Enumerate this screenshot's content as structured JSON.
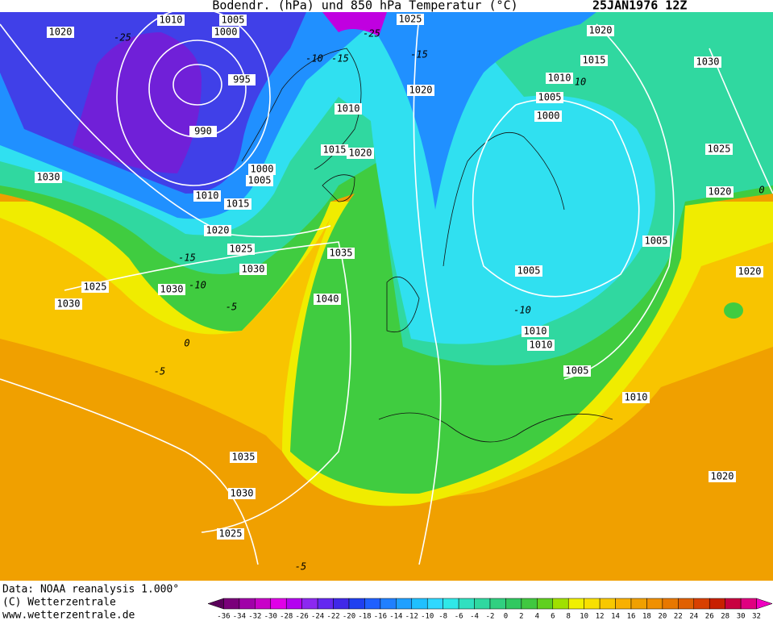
{
  "header": {
    "title": "Bodendr. (hPa) und 850 hPa Temperatur (°C)",
    "date": "25JAN1976 12Z"
  },
  "footer": [
    "Data: NOAA reanalysis 1.000°",
    "(C) Wetterzentrale",
    "www.wetterzentrale.de"
  ],
  "isobar_labels": [
    1020,
    1010,
    1005,
    1000,
    995,
    990,
    1030,
    1010,
    1015,
    1020,
    1025,
    1030,
    1035,
    1040,
    1025,
    1030,
    1030,
    1000,
    1005,
    1010,
    1015,
    1020,
    1025,
    1020,
    1020,
    1015,
    1030,
    1010,
    1005,
    1000,
    1025,
    1020,
    1005,
    1005,
    1020,
    1010,
    1010,
    1005,
    1010,
    1020,
    1035,
    1030,
    1025
  ],
  "temperature_labels": [
    -25,
    -25,
    -10,
    -15,
    -15,
    10,
    -15,
    -10,
    -5,
    0,
    -5,
    0,
    -10,
    -5
  ],
  "legend": {
    "ticks": [
      -36,
      -34,
      -32,
      -30,
      -28,
      -26,
      -24,
      -22,
      -20,
      -18,
      -16,
      -14,
      -12,
      -10,
      -8,
      -6,
      -4,
      -2,
      0,
      2,
      4,
      6,
      8,
      10,
      12,
      14,
      16,
      18,
      20,
      22,
      24,
      26,
      28,
      30,
      32
    ],
    "colors": [
      "#5a005a",
      "#7a007a",
      "#a000a8",
      "#c800c8",
      "#e000e8",
      "#b400f0",
      "#8c28f0",
      "#6428f0",
      "#4028e8",
      "#2040f0",
      "#2060ff",
      "#2080ff",
      "#20a0ff",
      "#20c0ff",
      "#30d8ff",
      "#30e8e8",
      "#30e0c0",
      "#30d8a0",
      "#30d080",
      "#30c860",
      "#40c840",
      "#60d020",
      "#a0e000",
      "#f0f000",
      "#f8e000",
      "#f8c800",
      "#f8b000",
      "#f0a000",
      "#f09000",
      "#e87800",
      "#e06000",
      "#d84000",
      "#c82000",
      "#c80040",
      "#e00080",
      "#f000c0"
    ]
  }
}
